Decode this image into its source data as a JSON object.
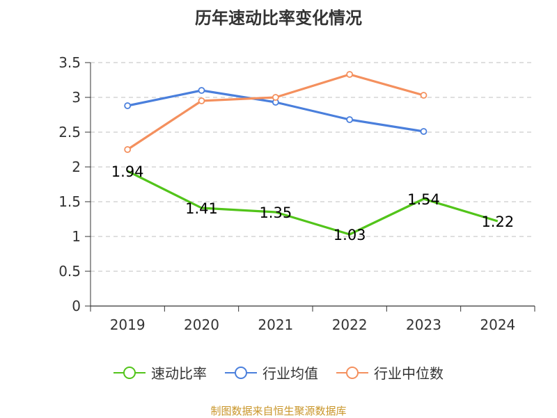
{
  "chart_data": {
    "type": "line",
    "title": "历年速动比率变化情况",
    "categories": [
      "2019",
      "2020",
      "2021",
      "2022",
      "2023",
      "2024"
    ],
    "ylim": [
      0,
      3.5
    ],
    "yticks": [
      "0",
      "0.5",
      "1",
      "1.5",
      "2",
      "2.5",
      "3",
      "3.5"
    ],
    "grid": true,
    "legend_position": "bottom",
    "series": [
      {
        "name": "速动比率",
        "color": "#52c41a",
        "values": [
          1.94,
          1.41,
          1.35,
          1.03,
          1.54,
          1.22
        ],
        "labels": [
          "1.94",
          "1.41",
          "1.35",
          "1.03",
          "1.54",
          "1.22"
        ]
      },
      {
        "name": "行业均值",
        "color": "#4a7fdc",
        "values": [
          2.88,
          3.1,
          2.93,
          2.68,
          2.51,
          null
        ]
      },
      {
        "name": "行业中位数",
        "color": "#f4905e",
        "values": [
          2.25,
          2.95,
          3.0,
          3.33,
          3.03,
          null
        ]
      }
    ]
  },
  "source_text": "制图数据来自恒生聚源数据库"
}
